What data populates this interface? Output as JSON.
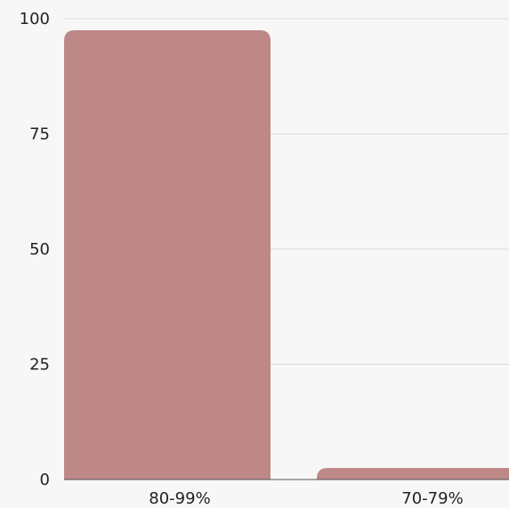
{
  "chart_data": {
    "type": "bar",
    "categories": [
      "80-99%",
      "70-79%"
    ],
    "values": [
      97.5,
      2.5
    ],
    "y_ticks": [
      0,
      25,
      50,
      75,
      100
    ],
    "ylim": [
      0,
      100
    ],
    "grid": true,
    "title": "",
    "xlabel": "",
    "ylabel": "",
    "bar_color": "#bd8886",
    "grid_color": "#dcdcdc",
    "axis_color": "#555555",
    "background": "#f7f7f7"
  }
}
